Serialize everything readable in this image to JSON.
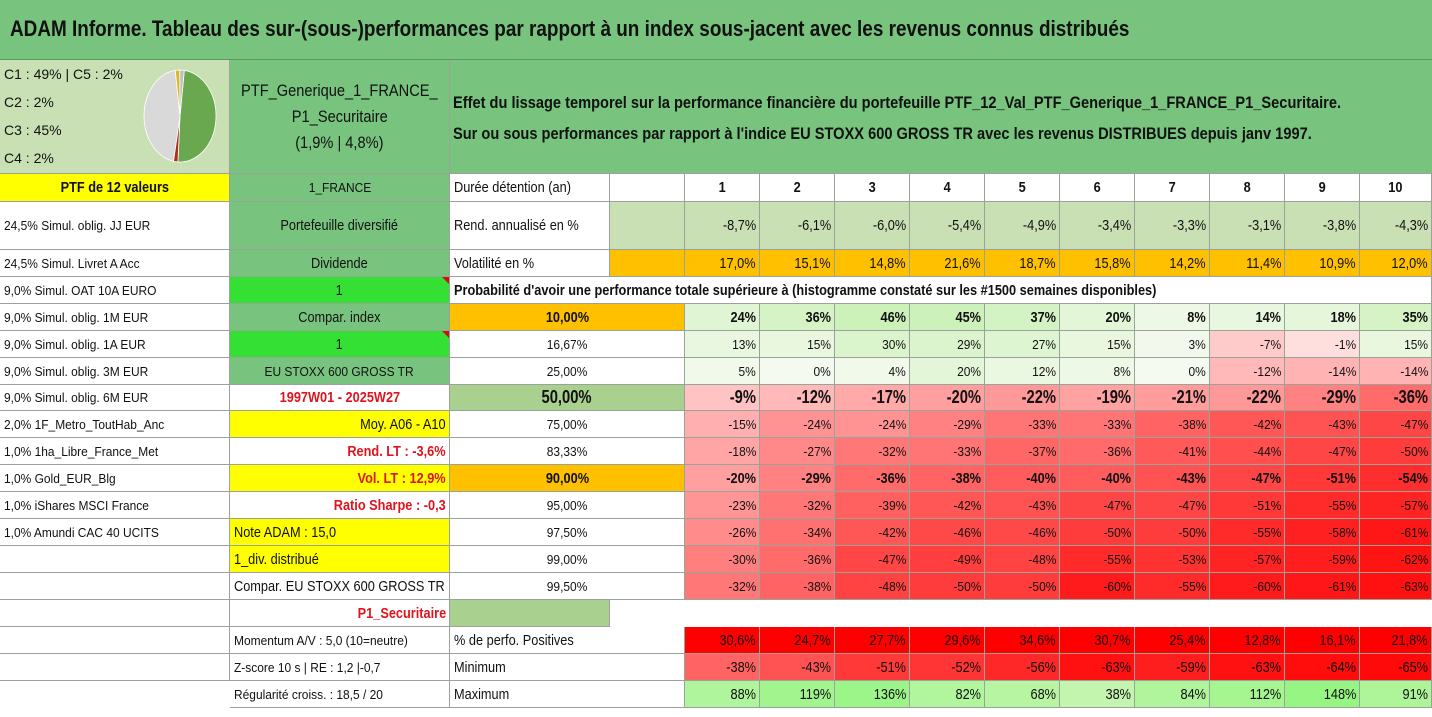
{
  "title": "ADAM Informe. Tableau des sur-(sous-)performances par rapport à un index sous-jacent avec les revenus connus distribués",
  "pie": {
    "labels": [
      "C1 : 49% | C5 : 2%",
      "C2 : 2%",
      "C3 : 45%",
      "C4 : 2%"
    ],
    "slices": [
      {
        "name": "C1",
        "value": 49,
        "color": "#6aa84f"
      },
      {
        "name": "C2",
        "value": 2,
        "color": "#b03020"
      },
      {
        "name": "C3",
        "value": 45,
        "color": "#d9d9d9"
      },
      {
        "name": "C4",
        "value": 2,
        "color": "#d9b830"
      },
      {
        "name": "C5",
        "value": 2,
        "color": "#c0c0c0"
      }
    ]
  },
  "portfolio": {
    "name_line1": "PTF_Generique_1_FRANCE_",
    "name_line2": "P1_Securitaire",
    "name_line3": "(1,9% | 4,8%)"
  },
  "description": {
    "line1": "Effet du lissage temporel sur la performance financière du portefeuille PTF_12_Val_PTF_Generique_1_FRANCE_P1_Securitaire.",
    "line2": "Sur ou sous performances par rapport à l'indice EU STOXX 600 GROSS TR avec les revenus DISTRIBUES depuis janv 1997."
  },
  "colA": [
    "PTF de 12 valeurs",
    "24,5% Simul. oblig. JJ EUR",
    "24,5% Simul. Livret A Acc",
    "9,0% Simul. OAT 10A EURO",
    "9,0% Simul. oblig. 1M EUR",
    "9,0% Simul. oblig. 1A EUR",
    "9,0% Simul. oblig. 3M EUR",
    "9,0% Simul. oblig. 6M EUR",
    "2,0% 1F_Metro_ToutHab_Anc",
    "1,0% 1ha_Libre_France_Met",
    "1,0% Gold_EUR_Blg",
    "1,0% iShares MSCI France",
    "1,0% Amundi CAC 40 UCITS",
    "",
    "",
    "",
    "",
    ""
  ],
  "colB": [
    "1_FRANCE",
    "Portefeuille diversifié",
    "Dividende",
    "1",
    "Compar. index",
    "1",
    "EU STOXX 600 GROSS TR",
    "1997W01 - 2025W27",
    "Moy. A06 - A10",
    "Rend. LT : -3,6%",
    "Vol. LT : 12,9%",
    "Ratio Sharpe : -0,3",
    "Note ADAM : 15,0",
    "1_div. distribué",
    "Compar. EU STOXX 600 GROSS TR",
    "P1_Securitaire",
    "Momentum A/V : 5,0 (10=neutre)",
    "Z-score 10 s | RE : 1,2 |-0,7",
    "Régularité croiss. : 18,5 / 20"
  ],
  "top_rows": {
    "header": {
      "label": "Durée détention (an)",
      "values": [
        "1",
        "2",
        "3",
        "4",
        "5",
        "6",
        "7",
        "8",
        "9",
        "10"
      ]
    },
    "rend": {
      "label": "Rend. annualisé en %",
      "values": [
        "-8,7%",
        "-6,1%",
        "-6,0%",
        "-5,4%",
        "-4,9%",
        "-3,4%",
        "-3,3%",
        "-3,1%",
        "-3,8%",
        "-4,3%"
      ]
    },
    "vol": {
      "label": "Volatilité en %",
      "values": [
        "17,0%",
        "15,1%",
        "14,8%",
        "21,6%",
        "18,7%",
        "15,8%",
        "14,2%",
        "11,4%",
        "10,9%",
        "12,0%"
      ]
    },
    "proba_title": "Probabilité d'avoir une performance totale supérieure à (histogramme constaté sur les #1500 semaines disponibles)"
  },
  "quantiles": [
    {
      "label": "10,00%",
      "values": [
        "24%",
        "36%",
        "46%",
        "45%",
        "37%",
        "20%",
        "8%",
        "14%",
        "18%",
        "35%"
      ]
    },
    {
      "label": "16,67%",
      "values": [
        "13%",
        "15%",
        "30%",
        "29%",
        "27%",
        "15%",
        "3%",
        "-7%",
        "-1%",
        "15%"
      ]
    },
    {
      "label": "25,00%",
      "values": [
        "5%",
        "0%",
        "4%",
        "20%",
        "12%",
        "8%",
        "0%",
        "-12%",
        "-14%",
        "-14%"
      ]
    },
    {
      "label": "50,00%",
      "values": [
        "-9%",
        "-12%",
        "-17%",
        "-20%",
        "-22%",
        "-19%",
        "-21%",
        "-22%",
        "-29%",
        "-36%"
      ]
    },
    {
      "label": "75,00%",
      "values": [
        "-15%",
        "-24%",
        "-24%",
        "-29%",
        "-33%",
        "-33%",
        "-38%",
        "-42%",
        "-43%",
        "-47%"
      ]
    },
    {
      "label": "83,33%",
      "values": [
        "-18%",
        "-27%",
        "-32%",
        "-33%",
        "-37%",
        "-36%",
        "-41%",
        "-44%",
        "-47%",
        "-50%"
      ]
    },
    {
      "label": "90,00%",
      "values": [
        "-20%",
        "-29%",
        "-36%",
        "-38%",
        "-40%",
        "-40%",
        "-43%",
        "-47%",
        "-51%",
        "-54%"
      ]
    },
    {
      "label": "95,00%",
      "values": [
        "-23%",
        "-32%",
        "-39%",
        "-42%",
        "-43%",
        "-47%",
        "-47%",
        "-51%",
        "-55%",
        "-57%"
      ]
    },
    {
      "label": "97,50%",
      "values": [
        "-26%",
        "-34%",
        "-42%",
        "-46%",
        "-46%",
        "-50%",
        "-50%",
        "-55%",
        "-58%",
        "-61%"
      ]
    },
    {
      "label": "99,00%",
      "values": [
        "-30%",
        "-36%",
        "-47%",
        "-49%",
        "-48%",
        "-55%",
        "-53%",
        "-57%",
        "-59%",
        "-62%"
      ]
    },
    {
      "label": "99,50%",
      "values": [
        "-32%",
        "-38%",
        "-48%",
        "-50%",
        "-50%",
        "-60%",
        "-55%",
        "-60%",
        "-61%",
        "-63%"
      ]
    }
  ],
  "bottom_rows": [
    {
      "label": "% de perfo. Positives",
      "values": [
        "30,6%",
        "24,7%",
        "27,7%",
        "29,6%",
        "34,6%",
        "30,7%",
        "25,4%",
        "12,8%",
        "16,1%",
        "21,8%"
      ]
    },
    {
      "label": "Minimum",
      "values": [
        "-38%",
        "-43%",
        "-51%",
        "-52%",
        "-56%",
        "-63%",
        "-59%",
        "-63%",
        "-64%",
        "-65%"
      ]
    },
    {
      "label": "Maximum",
      "values": [
        "88%",
        "119%",
        "136%",
        "82%",
        "68%",
        "38%",
        "84%",
        "112%",
        "148%",
        "91%"
      ]
    }
  ],
  "colors": {
    "title_green": "#78c47e",
    "soft_green": "#c8e0b4",
    "yellow": "#ffff00",
    "bright_green": "#33e033",
    "orange": "#ffc000",
    "bright_red": "#ff0000",
    "light_green": "#c6efb8",
    "text_red": "#e0141e"
  }
}
